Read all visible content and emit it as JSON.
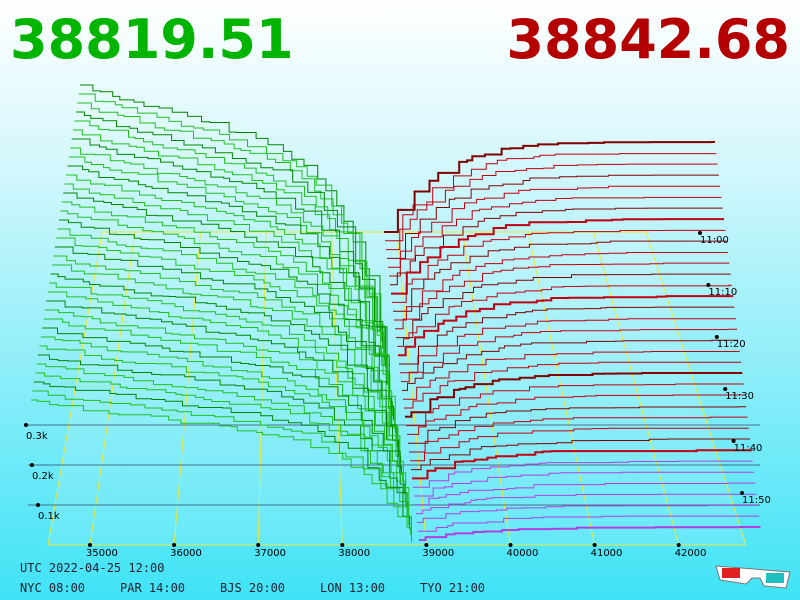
{
  "header": {
    "bid_price": "38819.51",
    "ask_price": "38842.68"
  },
  "price_axis": {
    "ticks": [
      35000,
      36000,
      37000,
      38000,
      39000,
      40000,
      41000,
      42000
    ],
    "range": [
      34500,
      42800
    ]
  },
  "depth_axis": {
    "ticks": [
      {
        "value": 100,
        "label": "0.1k"
      },
      {
        "value": 200,
        "label": "0.2k"
      },
      {
        "value": 300,
        "label": "0.3k"
      }
    ]
  },
  "time_axis": {
    "ticks": [
      "11:00",
      "11:10",
      "11:20",
      "11:30",
      "11:40",
      "11:50"
    ]
  },
  "footer": {
    "utc": "UTC 2022-04-25 12:00",
    "zones": [
      "NYC 08:00",
      "PAR 14:00",
      "BJS 20:00",
      "LON 13:00",
      "TYO 21:00"
    ]
  }
}
